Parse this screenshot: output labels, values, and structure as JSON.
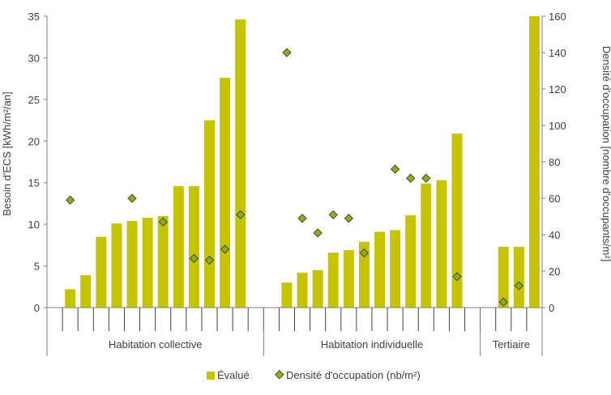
{
  "chart_data": {
    "type": "bar",
    "bar_color": "#c4c400",
    "marker_fill": "#8faa2a",
    "marker_stroke": "#3a4a10",
    "axis_color": "#7f7f7f",
    "text_color": "#404040",
    "y_left": {
      "label": "Besoin d'ECS [kWh/m²/an]",
      "ylim": [
        0,
        35
      ],
      "ticks": [
        0,
        5,
        10,
        15,
        20,
        25,
        30,
        35
      ]
    },
    "y_right": {
      "label": "Densité d'occupation [nombre d'occupants/m²]",
      "ylim": [
        0,
        160
      ],
      "ticks": [
        0,
        20,
        40,
        60,
        80,
        100,
        120,
        140,
        160
      ]
    },
    "groups": [
      {
        "label": "Habitation collective",
        "size": 14
      },
      {
        "label": "Habitation individuelle",
        "size": 14
      },
      {
        "label": "Tertiaire",
        "size": 4
      }
    ],
    "series": [
      {
        "name": "Évalué",
        "kind": "bar",
        "axis": "left",
        "values": [
          null,
          2.2,
          3.9,
          8.5,
          10.1,
          10.4,
          10.8,
          11.0,
          14.6,
          14.6,
          22.5,
          27.6,
          34.6,
          null,
          null,
          3.0,
          4.2,
          4.5,
          6.6,
          6.9,
          7.9,
          9.1,
          9.3,
          11.1,
          14.9,
          15.3,
          20.9,
          null,
          null,
          7.3,
          7.3,
          35.0
        ]
      },
      {
        "name": "Densité d'occupation (nb/m²)",
        "kind": "marker",
        "axis": "right",
        "values": [
          null,
          59,
          null,
          null,
          null,
          60,
          null,
          47,
          null,
          27,
          26,
          32,
          51,
          null,
          null,
          140,
          49,
          41,
          51,
          49,
          30,
          null,
          76,
          71,
          71,
          null,
          17,
          null,
          null,
          3,
          12,
          null
        ]
      }
    ],
    "legend": {
      "position": "bottom",
      "items": [
        "Évalué",
        "Densité d'occupation (nb/m²)"
      ]
    }
  }
}
